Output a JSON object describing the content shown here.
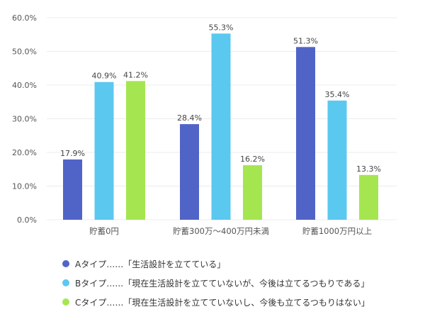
{
  "chart_data": {
    "type": "bar",
    "title": "",
    "xlabel": "",
    "ylabel": "",
    "ylim": [
      0,
      60
    ],
    "yticks": [
      0,
      10,
      20,
      30,
      40,
      50,
      60
    ],
    "ytick_labels": [
      "0.0%",
      "10.0%",
      "20.0%",
      "30.0%",
      "40.0%",
      "50.0%",
      "60.0%"
    ],
    "grid": true,
    "legend_position": "bottom",
    "categories": [
      "貯蓄0円",
      "貯蓄300万～400万円未満",
      "貯蓄1000万円以上"
    ],
    "series": [
      {
        "name": "Aタイプ……「生活設計を立てている」",
        "color": "#5064c8",
        "values": [
          17.9,
          28.4,
          51.3
        ],
        "labels": [
          "17.9%",
          "28.4%",
          "51.3%"
        ]
      },
      {
        "name": "Bタイプ……「現在生活設計を立てていないが、今後は立てるつもりである」",
        "color": "#5bc8f0",
        "values": [
          40.9,
          55.3,
          35.4
        ],
        "labels": [
          "40.9%",
          "55.3%",
          "35.4%"
        ]
      },
      {
        "name": "Cタイプ……「現在生活設計を立てていないし、今後も立てるつもりはない」",
        "color": "#a5e650",
        "values": [
          41.2,
          16.2,
          13.3
        ],
        "labels": [
          "41.2%",
          "16.2%",
          "13.3%"
        ]
      }
    ]
  }
}
